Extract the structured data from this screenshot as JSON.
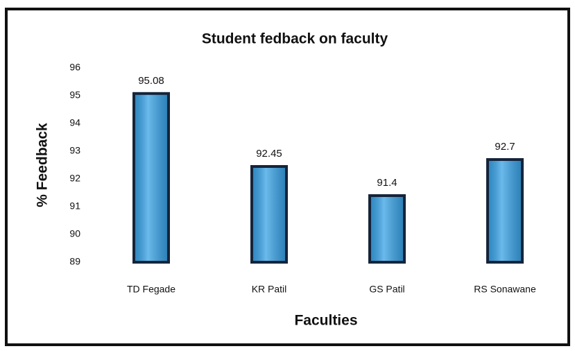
{
  "chart_data": {
    "type": "bar",
    "title": "Student fedback on faculty",
    "x_label": "Faculties",
    "y_label": "% Feedback",
    "categories": [
      "TD Fegade",
      "KR Patil",
      "GS Patil",
      "RS Sonawane"
    ],
    "values": [
      95.08,
      92.45,
      91.4,
      92.7
    ],
    "color": "#3aa3e6",
    "ylim": [
      89,
      96
    ],
    "yticks": [
      89,
      90,
      91,
      92,
      93,
      94,
      95,
      96
    ],
    "grid": false
  }
}
